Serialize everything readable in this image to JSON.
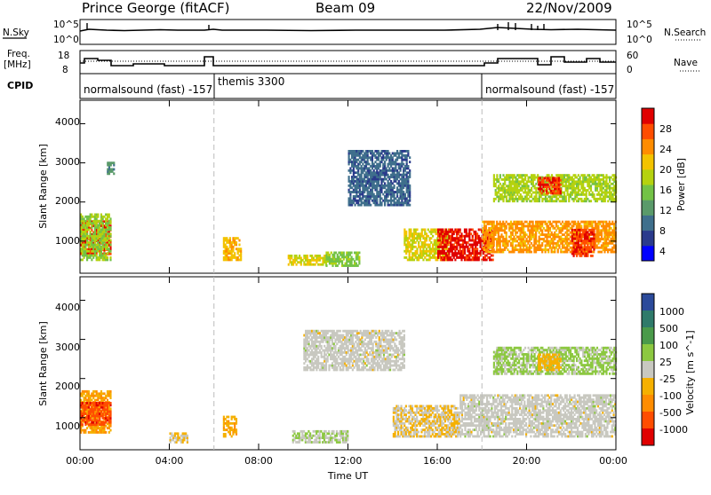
{
  "header": {
    "station": "Prince George (fitACF)",
    "beam": "Beam 09",
    "date": "22/Nov/2009"
  },
  "left_labels": {
    "nsky": "N.Sky",
    "freq_line1": "Freq.",
    "freq_line2": "[MHz]",
    "cpid": "CPID"
  },
  "right_labels": {
    "nsearch": "N.Search",
    "nave": "Nave"
  },
  "noise_axis": {
    "left_ticks": [
      "10^5",
      "10^0"
    ],
    "right_ticks": [
      "10^5",
      "10^0"
    ]
  },
  "freq_axis": {
    "left_ticks": [
      "18",
      "8"
    ],
    "right_ticks": [
      "60",
      "0"
    ]
  },
  "cpid_segments": [
    {
      "label": "normalsound (fast) -157",
      "start_hour": 0
    },
    {
      "label": "themis 3300",
      "start_hour": 6
    },
    {
      "label": "normalsound (fast) -157",
      "start_hour": 18
    }
  ],
  "x_axis": {
    "label": "Time UT",
    "ticks": [
      "00:00",
      "04:00",
      "08:00",
      "12:00",
      "16:00",
      "20:00",
      "00:00"
    ],
    "tick_hours": [
      0,
      4,
      8,
      12,
      16,
      20,
      24
    ]
  },
  "range_axis": {
    "label": "Slant Range [km]",
    "ticks": [
      "1000",
      "2000",
      "3000",
      "4000"
    ],
    "tick_values": [
      1000,
      2000,
      3000,
      4000
    ],
    "min": 180,
    "max": 4600
  },
  "power_scale": {
    "label": "Power [dB]",
    "ticks": [
      "28",
      "24",
      "20",
      "16",
      "12",
      "8",
      "4"
    ],
    "colors": [
      "#0000ff",
      "#2a3a8c",
      "#3f6f8c",
      "#5a9a6a",
      "#73c246",
      "#b5d20f",
      "#f3c300",
      "#ff8c00",
      "#ff4d00",
      "#e00000"
    ]
  },
  "velocity_scale": {
    "label": "Velocity [m s^-1]",
    "ticks": [
      "1000",
      "500",
      "100",
      "25",
      "-25",
      "-100",
      "-500",
      "-1000"
    ],
    "colors": [
      "#2b4a9a",
      "#2f7a6a",
      "#4a9a4a",
      "#8cc840",
      "#c8c8c0",
      "#f5b000",
      "#ff8c00",
      "#ff4d00",
      "#e00000"
    ]
  },
  "chart_data": [
    {
      "type": "heatmap",
      "title": "Power",
      "xlabel": "Time UT",
      "ylabel": "Slant Range [km]",
      "colorbar": "Power [dB]",
      "xlim": [
        0,
        24
      ],
      "ylim": [
        180,
        4600
      ],
      "vlim": [
        0,
        30
      ],
      "echo_regions": [
        {
          "t0": 0.0,
          "t1": 1.4,
          "r0": 650,
          "r1": 1500,
          "v": 27
        },
        {
          "t0": 0.0,
          "t1": 1.4,
          "r0": 500,
          "r1": 1700,
          "v": 15
        },
        {
          "t0": 1.2,
          "t1": 1.5,
          "r0": 2700,
          "r1": 3000,
          "v": 10
        },
        {
          "t0": 6.4,
          "t1": 7.2,
          "r0": 500,
          "r1": 1100,
          "v": 20
        },
        {
          "t0": 9.3,
          "t1": 11.0,
          "r0": 380,
          "r1": 620,
          "v": 18
        },
        {
          "t0": 11.0,
          "t1": 12.5,
          "r0": 350,
          "r1": 700,
          "v": 14
        },
        {
          "t0": 12.0,
          "t1": 14.8,
          "r0": 1900,
          "r1": 3300,
          "v": 7
        },
        {
          "t0": 14.5,
          "t1": 16.5,
          "r0": 500,
          "r1": 1300,
          "v": 18
        },
        {
          "t0": 16.0,
          "t1": 18.5,
          "r0": 500,
          "r1": 1300,
          "v": 28
        },
        {
          "t0": 18.0,
          "t1": 24.0,
          "r0": 700,
          "r1": 1500,
          "v": 22
        },
        {
          "t0": 18.5,
          "t1": 24.0,
          "r0": 2000,
          "r1": 2700,
          "v": 16
        },
        {
          "t0": 20.5,
          "t1": 21.5,
          "r0": 2200,
          "r1": 2600,
          "v": 27
        },
        {
          "t0": 22.0,
          "t1": 23.0,
          "r0": 600,
          "r1": 1300,
          "v": 27
        }
      ]
    },
    {
      "type": "heatmap",
      "title": "Velocity",
      "xlabel": "Time UT",
      "ylabel": "Slant Range [km]",
      "colorbar": "Velocity [m s^-1]",
      "xlim": [
        0,
        24
      ],
      "ylim": [
        180,
        4600
      ],
      "vlim": [
        -1000,
        1000
      ],
      "echo_regions": [
        {
          "t0": 0.0,
          "t1": 1.4,
          "r0": 600,
          "r1": 1700,
          "v": -300
        },
        {
          "t0": 0.0,
          "t1": 1.4,
          "r0": 800,
          "r1": 1400,
          "v": -700
        },
        {
          "t0": 4.0,
          "t1": 4.8,
          "r0": 350,
          "r1": 600,
          "v": -90
        },
        {
          "t0": 6.4,
          "t1": 7.0,
          "r0": 500,
          "r1": 1000,
          "v": -300
        },
        {
          "t0": 9.5,
          "t1": 12.0,
          "r0": 350,
          "r1": 650,
          "v": 80
        },
        {
          "t0": 10.0,
          "t1": 14.5,
          "r0": 2200,
          "r1": 3200,
          "v": 0
        },
        {
          "t0": 14.0,
          "t1": 17.0,
          "r0": 500,
          "r1": 1300,
          "v": -100
        },
        {
          "t0": 17.0,
          "t1": 24.0,
          "r0": 500,
          "r1": 1600,
          "v": 0
        },
        {
          "t0": 18.5,
          "t1": 24.0,
          "r0": 2100,
          "r1": 2800,
          "v": 150
        },
        {
          "t0": 20.5,
          "t1": 21.5,
          "r0": 2200,
          "r1": 2600,
          "v": -200
        }
      ]
    }
  ]
}
